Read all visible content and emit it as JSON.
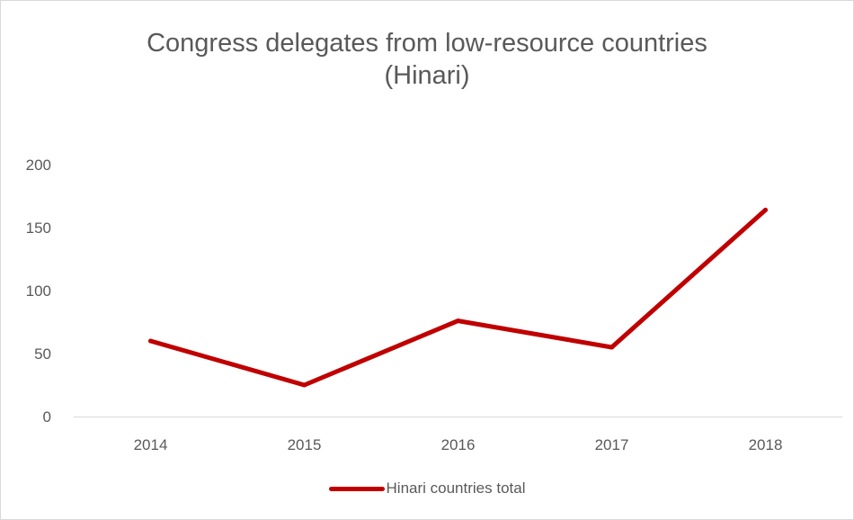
{
  "chart_data": {
    "type": "line",
    "title": [
      "Congress delegates from low-resource countries",
      "(Hinari)"
    ],
    "xlabel": "",
    "ylabel": "",
    "categories": [
      "2014",
      "2015",
      "2016",
      "2017",
      "2018"
    ],
    "series": [
      {
        "name": "Hinari countries total",
        "values": [
          60,
          25,
          76,
          55,
          164
        ],
        "color": "#c00000"
      }
    ],
    "ylim": [
      0,
      200
    ],
    "yticks": [
      0,
      50,
      100,
      150,
      200
    ],
    "grid": false,
    "legend": "bottom"
  }
}
